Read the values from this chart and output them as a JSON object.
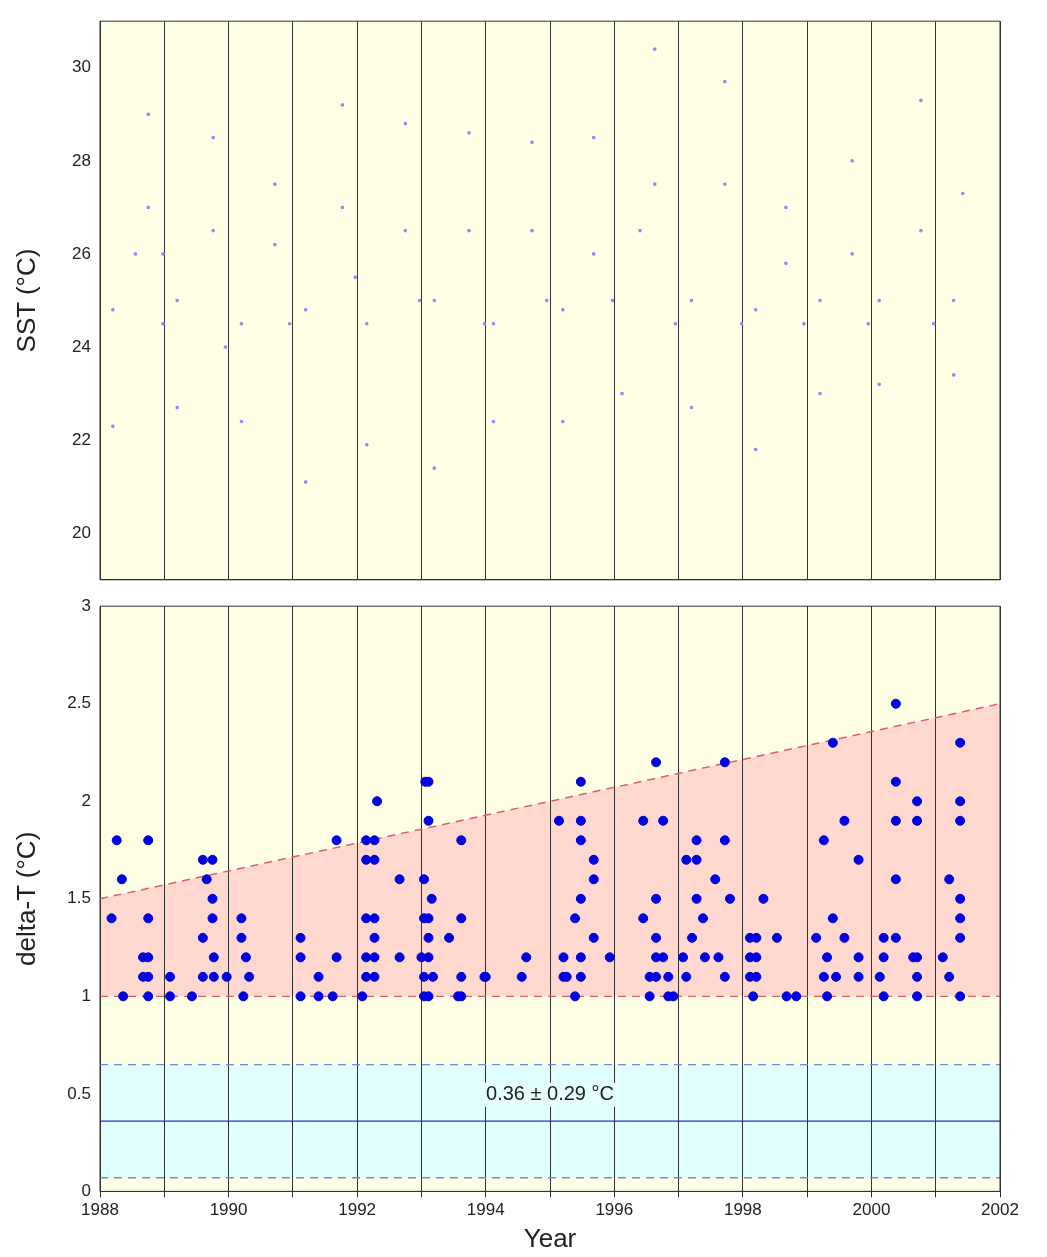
{
  "chart_data": [
    {
      "type": "scatter",
      "ylabel": "SST (°C)",
      "xlim": [
        1988,
        2002
      ],
      "xticks": [
        1988,
        {
          "value": 1989,
          "label": null
        },
        1990,
        {
          "value": 1991,
          "label": null
        },
        1992,
        {
          "value": 1993,
          "label": null
        },
        1994,
        {
          "value": 1995,
          "label": null
        },
        1996,
        {
          "value": 1997,
          "label": null
        },
        1998,
        {
          "value": 1999,
          "label": null
        },
        2000,
        {
          "value": 2001,
          "label": null
        },
        2002
      ],
      "ylim": [
        19,
        31
      ],
      "yticks": [
        20,
        22,
        24,
        26,
        28,
        30
      ],
      "grid": "x",
      "tick_labels": "y",
      "series": [
        {
          "color": "#8c8cf0",
          "x": [
            1988.2,
            1988.2,
            1988.55,
            1988.75,
            1988.75,
            1988.98,
            1988.98,
            1989.2,
            1989.2,
            1989.76,
            1989.76,
            1989.95,
            1990.2,
            1990.2,
            1990.72,
            1990.72,
            1990.95,
            1991.2,
            1991.2,
            1991.77,
            1991.77,
            1991.97,
            1992.15,
            1992.15,
            1992.75,
            1992.75,
            1992.97,
            1993.2,
            1993.2,
            1993.74,
            1993.74,
            1993.98,
            1994.12,
            1994.12,
            1994.72,
            1994.72,
            1994.95,
            1995.2,
            1995.2,
            1995.68,
            1995.68,
            1995.97,
            1996.12,
            1996.4,
            1996.63,
            1996.63,
            1996.95,
            1997.2,
            1997.2,
            1997.72,
            1997.72,
            1997.98,
            1998.2,
            1998.2,
            1998.67,
            1998.67,
            1998.95,
            1999.2,
            1999.2,
            1999.7,
            1999.7,
            1999.95,
            2000.12,
            2000.12,
            2000.77,
            2000.77,
            2000.97,
            2001.28,
            2001.28,
            2001.42
          ],
          "values": [
            22.3,
            24.8,
            26.0,
            29.0,
            27.0,
            24.5,
            26.0,
            22.7,
            25.0,
            28.5,
            26.5,
            24.0,
            22.4,
            24.5,
            27.5,
            26.2,
            24.5,
            21.1,
            24.8,
            29.2,
            27.0,
            25.5,
            21.9,
            24.5,
            28.8,
            26.5,
            25.0,
            21.4,
            25.0,
            28.6,
            26.5,
            24.5,
            22.4,
            24.5,
            28.4,
            26.5,
            25.0,
            22.4,
            24.8,
            28.5,
            26.0,
            25.0,
            23.0,
            26.5,
            30.4,
            27.5,
            24.5,
            22.7,
            25.0,
            29.7,
            27.5,
            24.5,
            21.8,
            24.8,
            27.0,
            25.8,
            24.5,
            23.0,
            25.0,
            28.0,
            26.0,
            24.5,
            23.2,
            25.0,
            29.3,
            26.5,
            24.5,
            23.4,
            25.0,
            27.3
          ]
        }
      ]
    },
    {
      "type": "scatter",
      "xlabel": "Year",
      "ylabel": "delta-T (°C)",
      "xlim": [
        1988,
        2002
      ],
      "xticks": [
        1988,
        {
          "value": 1989,
          "label": null
        },
        1990,
        {
          "value": 1991,
          "label": null
        },
        1992,
        {
          "value": 1993,
          "label": null
        },
        1994,
        {
          "value": 1995,
          "label": null
        },
        1996,
        {
          "value": 1997,
          "label": null
        },
        1998,
        {
          "value": 1999,
          "label": null
        },
        2000,
        {
          "value": 2001,
          "label": null
        },
        2002
      ],
      "ylim": [
        0,
        3
      ],
      "yticks": [
        0,
        0.5,
        1,
        1.5,
        2,
        2.5,
        3
      ],
      "grid": "x",
      "bands": [
        {
          "axis": "y",
          "from": 0.07,
          "to": 0.65,
          "color": "#e0ffff"
        }
      ],
      "ref_lines": [
        {
          "axis": "y",
          "value": 1,
          "color": "#e06060",
          "line_style": "dashed"
        },
        {
          "axis": "y",
          "value": 0.36,
          "color": "#3030c0",
          "line_style": "solid"
        },
        {
          "axis": "y",
          "value": 0.07,
          "color": "#8080e0",
          "line_style": "dashed"
        },
        {
          "axis": "y",
          "value": 0.65,
          "color": "#8080e0",
          "line_style": "dashed"
        }
      ],
      "annotations": [
        "0.36 ± 0.29 °C"
      ],
      "series": [
        {
          "type": "line",
          "color": "#e06060",
          "line_style": "dashed",
          "x": [
            1988,
            2002
          ],
          "values": [
            1.5,
            2.5
          ],
          "lower": [
            1,
            1
          ],
          "upper": [
            1.5,
            2.5
          ]
        },
        {
          "color": "#0000e0",
          "marker": "circle",
          "x": [
            1988.18,
            1988.26,
            1988.34,
            1988.36,
            1988.67,
            1988.67,
            1988.75,
            1988.75,
            1988.75,
            1988.75,
            1988.75,
            1989.09,
            1989.09,
            1989.43,
            1989.6,
            1989.6,
            1989.6,
            1989.66,
            1989.75,
            1989.75,
            1989.75,
            1989.77,
            1989.77,
            1989.97,
            1990.2,
            1990.2,
            1990.23,
            1990.27,
            1990.32,
            1991.12,
            1991.12,
            1991.12,
            1991.4,
            1991.4,
            1991.62,
            1991.68,
            1991.68,
            1992.08,
            1992.14,
            1992.14,
            1992.14,
            1992.14,
            1992.14,
            1992.27,
            1992.27,
            1992.27,
            1992.27,
            1992.27,
            1992.27,
            1992.31,
            1992.66,
            1992.66,
            1993.0,
            1993.04,
            1993.04,
            1993.04,
            1993.04,
            1993.06,
            1993.11,
            1993.11,
            1993.11,
            1993.11,
            1993.11,
            1993.11,
            1993.16,
            1993.18,
            1993.43,
            1993.57,
            1993.62,
            1993.62,
            1993.62,
            1993.62,
            1993.98,
            1994.0,
            1994.56,
            1994.63,
            1995.14,
            1995.21,
            1995.21,
            1995.26,
            1995.39,
            1995.39,
            1995.48,
            1995.48,
            1995.48,
            1995.48,
            1995.48,
            1995.48,
            1995.68,
            1995.68,
            1995.68,
            1995.93,
            1996.45,
            1996.45,
            1996.55,
            1996.55,
            1996.65,
            1996.65,
            1996.65,
            1996.65,
            1996.65,
            1996.76,
            1996.76,
            1996.84,
            1996.84,
            1996.92,
            1997.07,
            1997.12,
            1997.12,
            1997.21,
            1997.28,
            1997.28,
            1997.28,
            1997.38,
            1997.41,
            1997.57,
            1997.62,
            1997.72,
            1997.72,
            1997.72,
            1997.8,
            1998.11,
            1998.11,
            1998.11,
            1998.16,
            1998.21,
            1998.21,
            1998.21,
            1998.32,
            1998.53,
            1998.68,
            1998.83,
            1999.14,
            1999.26,
            1999.26,
            1999.31,
            1999.31,
            1999.4,
            1999.4,
            1999.45,
            1999.58,
            1999.58,
            1999.8,
            1999.8,
            1999.8,
            2000.13,
            2000.19,
            2000.19,
            2000.19,
            2000.38,
            2000.38,
            2000.38,
            2000.38,
            2000.38,
            2000.65,
            2000.71,
            2000.71,
            2000.71,
            2000.71,
            2000.71,
            2001.11,
            2001.21,
            2001.21,
            2001.38,
            2001.38,
            2001.38,
            2001.38,
            2001.38,
            2001.38,
            2001.38
          ],
          "values": [
            1.4,
            1.8,
            1.6,
            1.0,
            1.1,
            1.2,
            1.8,
            1.4,
            1.2,
            1.1,
            1.0,
            1.1,
            1.0,
            1.0,
            1.7,
            1.3,
            1.1,
            1.6,
            1.7,
            1.5,
            1.4,
            1.2,
            1.1,
            1.1,
            1.4,
            1.3,
            1.0,
            1.2,
            1.1,
            1.3,
            1.2,
            1.0,
            1.1,
            1.0,
            1.0,
            1.2,
            1.8,
            1.0,
            1.8,
            1.7,
            1.4,
            1.2,
            1.1,
            1.8,
            1.7,
            1.4,
            1.3,
            1.2,
            1.1,
            2.0,
            1.6,
            1.2,
            1.2,
            1.6,
            1.4,
            1.1,
            1.0,
            2.1,
            2.1,
            1.9,
            1.4,
            1.3,
            1.2,
            1.0,
            1.5,
            1.1,
            1.3,
            1.0,
            1.8,
            1.4,
            1.1,
            1.0,
            1.1,
            1.1,
            1.1,
            1.2,
            1.9,
            1.2,
            1.1,
            1.1,
            1.4,
            1.0,
            2.1,
            1.9,
            1.8,
            1.5,
            1.2,
            1.1,
            1.7,
            1.6,
            1.3,
            1.2,
            1.9,
            1.4,
            1.1,
            1.0,
            2.2,
            1.5,
            1.3,
            1.2,
            1.1,
            1.9,
            1.2,
            1.1,
            1.0,
            1.0,
            1.2,
            1.7,
            1.1,
            1.3,
            1.8,
            1.7,
            1.5,
            1.4,
            1.2,
            1.6,
            1.2,
            2.2,
            1.8,
            1.1,
            1.5,
            1.3,
            1.2,
            1.1,
            1.0,
            1.3,
            1.2,
            1.1,
            1.5,
            1.3,
            1.0,
            1.0,
            1.3,
            1.8,
            1.1,
            1.2,
            1.0,
            2.3,
            1.4,
            1.1,
            1.9,
            1.3,
            1.7,
            1.2,
            1.1,
            1.1,
            1.3,
            1.2,
            1.0,
            2.5,
            2.1,
            1.9,
            1.6,
            1.3,
            1.2,
            2.0,
            1.9,
            1.2,
            1.1,
            1.0,
            1.2,
            1.6,
            1.1,
            2.3,
            2.0,
            1.9,
            1.5,
            1.4,
            1.3,
            1.0
          ]
        }
      ]
    }
  ]
}
